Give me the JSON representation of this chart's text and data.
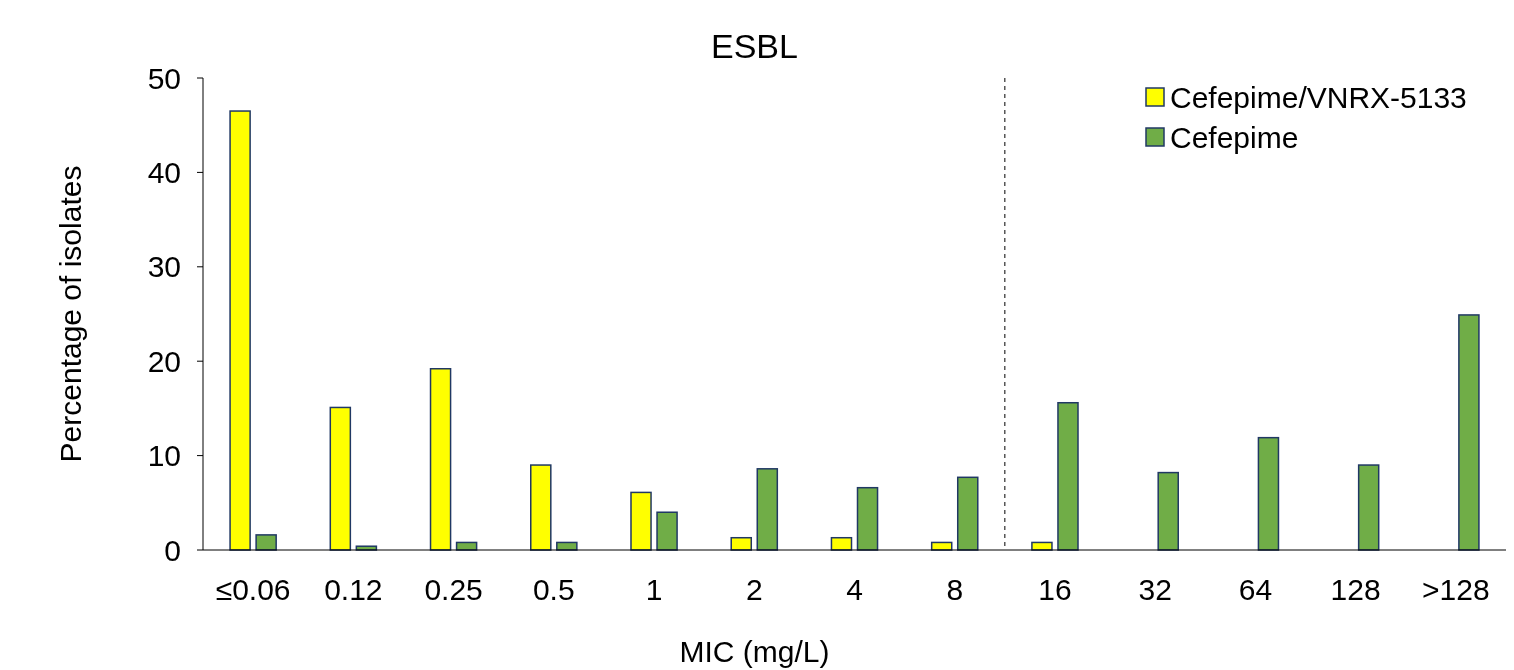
{
  "chart_data": {
    "type": "bar",
    "title": "ESBL",
    "xlabel": "MIC (mg/L)",
    "ylabel": "Percentage of isolates",
    "categories": [
      "≤0.06",
      "0.12",
      "0.25",
      "0.5",
      "1",
      "2",
      "4",
      "8",
      "16",
      "32",
      "64",
      "128",
      ">128"
    ],
    "series": [
      {
        "name": "Cefepime/VNRX-5133",
        "color": "#ffff00",
        "values": [
          46.5,
          15.1,
          19.2,
          9.0,
          6.1,
          1.3,
          1.3,
          0.8,
          0.8,
          null,
          null,
          null,
          null
        ]
      },
      {
        "name": "Cefepime",
        "color": "#70ad47",
        "values": [
          1.6,
          0.4,
          0.8,
          0.8,
          4.0,
          8.6,
          6.6,
          7.7,
          15.6,
          8.2,
          11.9,
          9.0,
          24.9
        ]
      }
    ],
    "ylim": [
      0,
      50
    ],
    "yticks": [
      0,
      10,
      20,
      30,
      40,
      50
    ],
    "legend": "top right",
    "grid": false
  }
}
